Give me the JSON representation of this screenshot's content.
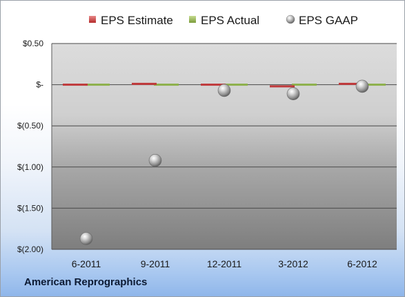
{
  "footer": {
    "company": "American Reprographics"
  },
  "colors": {
    "estimate": "#c0393b",
    "actual": "#8db04a",
    "gaap": "#a9a9a9",
    "grid": "#4a4a4a"
  },
  "chart_data": {
    "type": "scatter",
    "categories": [
      "6-2011",
      "9-2011",
      "12-2011",
      "3-2012",
      "6-2012"
    ],
    "yticks": [
      0.5,
      0,
      -0.5,
      -1.0,
      -1.5,
      -2.0
    ],
    "ytick_labels": [
      "$0.50",
      "$-",
      "$(0.50)",
      "$(1.00)",
      "$(1.50)",
      "$(2.00)"
    ],
    "ylim": [
      -2.0,
      0.5
    ],
    "legend_position": "top",
    "grid": true,
    "series": [
      {
        "name": "EPS Estimate",
        "marker": "dash",
        "values": [
          0.0,
          0.01,
          0.0,
          -0.02,
          0.01
        ]
      },
      {
        "name": "EPS Actual",
        "marker": "dash",
        "values": [
          0.0,
          0.0,
          0.0,
          0.0,
          0.0
        ]
      },
      {
        "name": "EPS GAAP",
        "marker": "sphere",
        "values": [
          -1.87,
          -0.92,
          -0.07,
          -0.11,
          -0.02
        ]
      }
    ]
  }
}
